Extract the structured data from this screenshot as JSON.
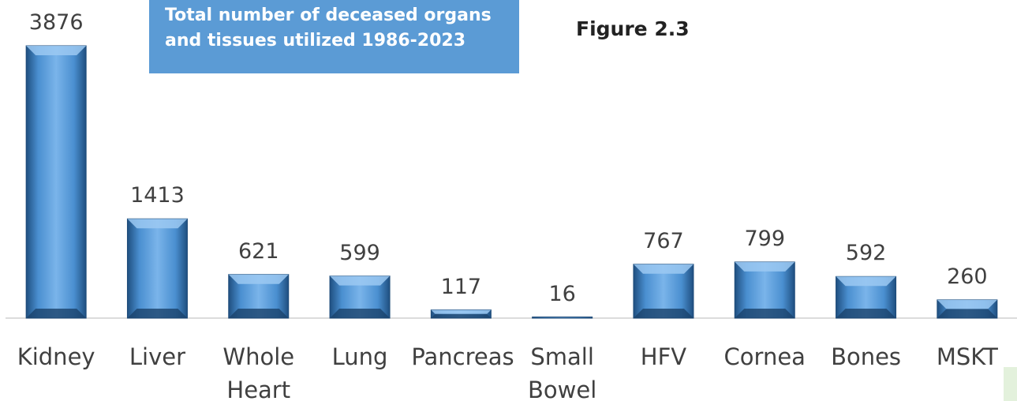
{
  "chart_data": {
    "type": "bar",
    "title": "Total number of deceased organs and tissues utilized 1986-2023",
    "annotation": "Figure 2.3",
    "categories": [
      "Kidney",
      "Liver",
      "Whole Heart",
      "Lung",
      "Pancreas",
      "Small Bowel",
      "HFV",
      "Cornea",
      "Bones",
      "MSKT"
    ],
    "values": [
      3876,
      1413,
      621,
      599,
      117,
      16,
      767,
      799,
      592,
      260
    ],
    "color": "#4a8fd0"
  }
}
